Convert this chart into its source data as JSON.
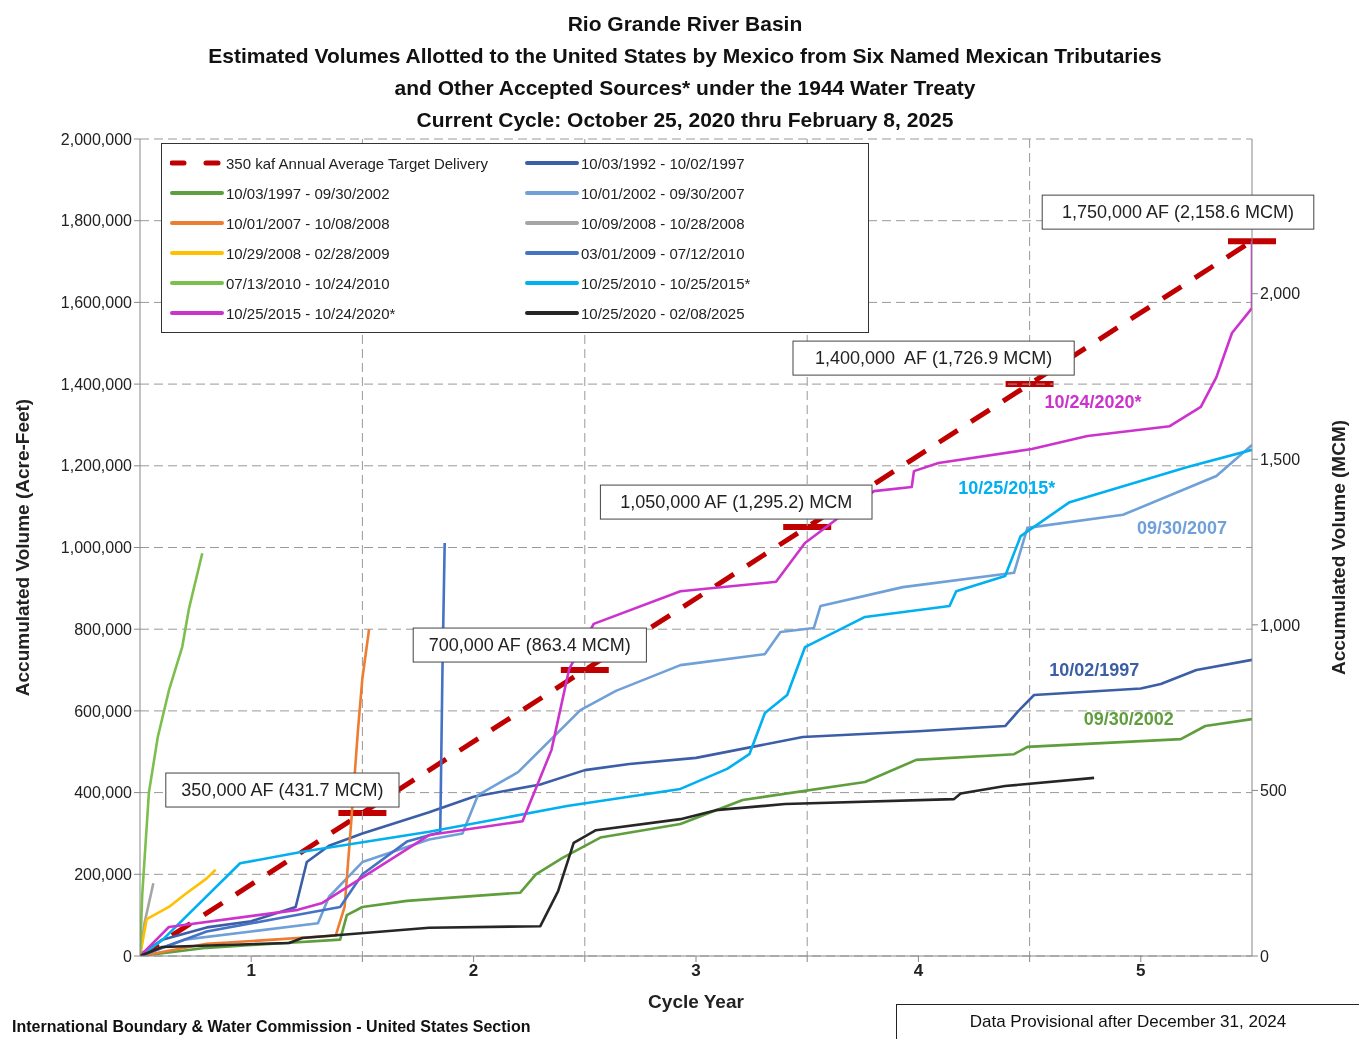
{
  "chart_data": {
    "type": "line",
    "title": "Rio Grande River Basin",
    "subtitle": "Estimated Volumes Allotted to the United States by Mexico from Six Named Mexican Tributaries\nand Other Accepted Sources* under the 1944 Water Treaty\nCurrent Cycle: October 25, 2020 thru February 8, 2025",
    "xlabel": "Cycle Year",
    "ylabel": "Accumulated Volume (Acre-Feet)",
    "y2label": "Accumulated Volume (MCM)",
    "xlim": [
      0,
      5
    ],
    "xticks": [
      {
        "value": 0.5,
        "label": "1"
      },
      {
        "value": 1,
        "label": null
      },
      {
        "value": 1.5,
        "label": "2"
      },
      {
        "value": 2,
        "label": null
      },
      {
        "value": 2.5,
        "label": "3"
      },
      {
        "value": 3,
        "label": null
      },
      {
        "value": 3.5,
        "label": "4"
      },
      {
        "value": 4,
        "label": null
      },
      {
        "value": 4.5,
        "label": "5"
      }
    ],
    "ylim": [
      0,
      2000000
    ],
    "yticks": [
      0,
      {
        "value": 200000,
        "label": "200,000"
      },
      {
        "value": 400000,
        "label": "400,000"
      },
      {
        "value": 600000,
        "label": "600,000"
      },
      {
        "value": 800000,
        "label": "800,000"
      },
      {
        "value": 1000000,
        "label": "1,000,000"
      },
      {
        "value": 1200000,
        "label": "1,200,000"
      },
      {
        "value": 1400000,
        "label": "1,400,000"
      },
      {
        "value": 1600000,
        "label": "1,600,000"
      },
      {
        "value": 1800000,
        "label": "1,800,000"
      },
      {
        "value": 2000000,
        "label": "2,000,000"
      }
    ],
    "y2lim": [
      0,
      2467
    ],
    "y2ticks": [
      0,
      500,
      {
        "value": 1000,
        "label": "1,000"
      },
      {
        "value": 1500,
        "label": "1,500"
      },
      {
        "value": 2000,
        "label": "2,000"
      }
    ],
    "grid": true,
    "legend": "top left",
    "series": [
      {
        "name": "350 kaf Annual Average Target Delivery",
        "color": "#c00000",
        "line_style": "dashed",
        "x": [
          0,
          5
        ],
        "values": [
          0,
          1750000
        ]
      },
      {
        "name": "10/03/1992 - 10/02/1997",
        "color": "#3b5ea6",
        "x": [
          0,
          0.1,
          0.3,
          0.5,
          0.7,
          0.75,
          0.85,
          1.0,
          1.3,
          1.5,
          1.8,
          2.0,
          2.2,
          2.5,
          2.98,
          3.5,
          3.89,
          3.95,
          4.02,
          4.5,
          4.59,
          4.75,
          5
        ],
        "values": [
          0,
          40000,
          70000,
          85000,
          120000,
          230000,
          270000,
          300000,
          352000,
          390000,
          420000,
          455000,
          470000,
          485000,
          536000,
          550000,
          563000,
          600000,
          639000,
          655000,
          666000,
          700000,
          725000
        ]
      },
      {
        "name": "10/03/1997 - 09/30/2002",
        "color": "#5f9e3c",
        "x": [
          0,
          0.3,
          0.6,
          0.9,
          0.93,
          1.0,
          1.2,
          1.71,
          1.78,
          1.9,
          2.07,
          2.43,
          2.71,
          3.26,
          3.49,
          3.93,
          3.99,
          4.68,
          4.79,
          5
        ],
        "values": [
          0,
          20000,
          30000,
          40000,
          100000,
          120000,
          135000,
          155000,
          200000,
          240000,
          290000,
          323000,
          382000,
          426000,
          480000,
          494000,
          512000,
          531000,
          563000,
          580000
        ]
      },
      {
        "name": "10/01/2002 - 09/30/2007",
        "color": "#6fa0d8",
        "x": [
          0,
          0.2,
          0.5,
          0.8,
          0.85,
          1.0,
          1.3,
          1.45,
          1.52,
          1.7,
          1.98,
          2.14,
          2.43,
          2.81,
          2.88,
          3.03,
          3.06,
          3.43,
          3.93,
          3.99,
          4.42,
          4.84,
          5
        ],
        "values": [
          0,
          40000,
          60000,
          80000,
          145000,
          230000,
          285000,
          300000,
          394000,
          450000,
          602000,
          649000,
          712000,
          739000,
          793000,
          803000,
          857000,
          903000,
          938000,
          1048000,
          1080000,
          1175000,
          1251000
        ]
      },
      {
        "name": "10/01/2007 - 10/08/2008",
        "color": "#ed7d31",
        "x": [
          0,
          0.3,
          0.6,
          0.88,
          0.92,
          0.95,
          0.98,
          1.0,
          1.03
        ],
        "values": [
          0,
          30000,
          40000,
          50000,
          120000,
          330000,
          553000,
          680000,
          800000
        ]
      },
      {
        "name": "10/09/2008 - 10/28/2008",
        "color": "#a5a5a5",
        "x": [
          0,
          0.02,
          0.06
        ],
        "values": [
          0,
          80000,
          178000
        ]
      },
      {
        "name": "10/29/2008 - 02/28/2009",
        "color": "#ffc000",
        "x": [
          0,
          0.03,
          0.13,
          0.2,
          0.3,
          0.34
        ],
        "values": [
          0,
          90000,
          120000,
          150000,
          190000,
          211000
        ]
      },
      {
        "name": "03/01/2009 - 07/12/2010",
        "color": "#4472c4",
        "x": [
          0,
          0.3,
          0.6,
          0.9,
          1.0,
          1.2,
          1.35,
          1.36,
          1.37
        ],
        "values": [
          0,
          60000,
          90000,
          120000,
          200000,
          280000,
          303000,
          700000,
          1011000
        ]
      },
      {
        "name": "07/13/2010 - 10/24/2010",
        "color": "#7cbf4d",
        "x": [
          0,
          0.01,
          0.04,
          0.08,
          0.13,
          0.19,
          0.22,
          0.28
        ],
        "values": [
          0,
          150000,
          400000,
          536000,
          650000,
          757000,
          850000,
          986000
        ]
      },
      {
        "name": "10/25/2010 - 10/25/2015*",
        "color": "#00b0f0",
        "x": [
          0,
          0.1,
          0.45,
          0.73,
          1.3,
          1.92,
          2.43,
          2.64,
          2.74,
          2.81,
          2.91,
          2.99,
          3.26,
          3.64,
          3.67,
          3.89,
          3.96,
          4.18,
          4.71,
          5
        ],
        "values": [
          0,
          39000,
          227000,
          255000,
          304000,
          367000,
          409000,
          458000,
          494000,
          595000,
          639000,
          756000,
          830000,
          857000,
          893000,
          930000,
          1028000,
          1111000,
          1197000,
          1239000
        ]
      },
      {
        "name": "10/25/2015 - 10/24/2020*",
        "color": "#cc33cc",
        "x": [
          0,
          0.13,
          0.71,
          0.82,
          1.3,
          1.72,
          1.85,
          1.93,
          2.04,
          2.43,
          2.86,
          2.99,
          3.3,
          3.47,
          3.48,
          3.59,
          4.01,
          4.26,
          4.63,
          4.77,
          4.84,
          4.91,
          5,
          5
        ],
        "values": [
          0,
          71000,
          113000,
          130000,
          296000,
          330000,
          504000,
          703000,
          813000,
          893000,
          916000,
          1011000,
          1138000,
          1148000,
          1187000,
          1207000,
          1241000,
          1273000,
          1297000,
          1344000,
          1417000,
          1525000,
          1586000,
          1750000
        ]
      },
      {
        "name": "10/25/2020 - 02/08/2025",
        "color": "#262626",
        "x": [
          0,
          0.1,
          0.67,
          0.73,
          1.3,
          1.8,
          1.88,
          1.95,
          2.05,
          2.43,
          2.59,
          2.9,
          3.66,
          3.69,
          3.89,
          4.29
        ],
        "values": [
          0,
          22000,
          32000,
          44000,
          69000,
          73000,
          159000,
          277000,
          308000,
          335000,
          357000,
          372000,
          384000,
          398000,
          416000,
          436000
        ]
      }
    ],
    "annotations": [
      {
        "text": "350,000 AF (431.7 MCM)",
        "x": 1,
        "y": 350000
      },
      {
        "text": "700,000 AF (863.4 MCM)",
        "x": 2,
        "y": 700000
      },
      {
        "text": "1,050,000 AF (1,295.2) MCM",
        "x": 3,
        "y": 1050000
      },
      {
        "text": "1,400,000  AF (1,726.9 MCM)",
        "x": 4,
        "y": 1400000
      },
      {
        "text": "1,750,000 AF (2,158.6 MCM)",
        "x": 5,
        "y": 1750000
      },
      {
        "text": "10/24/2020*",
        "x": 4.285,
        "y": 1275000
      },
      {
        "text": "10/25/2015*",
        "x": 4.1,
        "y": 1081000
      },
      {
        "text": "09/30/2007",
        "x": 4.6,
        "y": 1121000
      },
      {
        "text": "10/02/1997",
        "x": 4.3,
        "y": 648000
      },
      {
        "text": "09/30/2002",
        "x": 4.5,
        "y": 526000
      },
      "International Boundary & Water Commission - United States Section",
      "Data Provisional after December 31, 2024"
    ]
  }
}
